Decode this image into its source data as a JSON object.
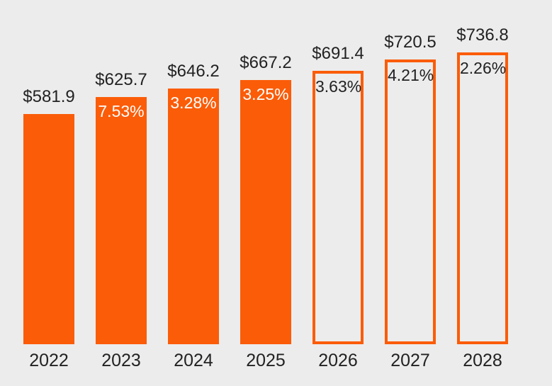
{
  "colors": {
    "background": "#ECECEC",
    "accent": "#FB5C08",
    "text_dark": "#222222",
    "pct_text_on_filled": "#FFFFFF"
  },
  "chart_data": {
    "type": "bar",
    "title": "",
    "xlabel": "",
    "ylabel": "",
    "legend": "none",
    "grid": false,
    "axes_visible": false,
    "categories": [
      "2022",
      "2023",
      "2024",
      "2025",
      "2026",
      "2027",
      "2028"
    ],
    "series": [
      {
        "name": "value",
        "values": [
          581.9,
          625.7,
          646.2,
          667.2,
          691.4,
          720.5,
          736.8
        ]
      }
    ],
    "growth_percent": [
      null,
      7.53,
      3.28,
      3.25,
      3.63,
      4.21,
      2.26
    ],
    "bars": [
      {
        "year": "2022",
        "value": 581.9,
        "value_label": "$581.9",
        "pct_label": "",
        "style": "filled"
      },
      {
        "year": "2023",
        "value": 625.7,
        "value_label": "$625.7",
        "pct_label": "7.53%",
        "style": "filled"
      },
      {
        "year": "2024",
        "value": 646.2,
        "value_label": "$646.2",
        "pct_label": "3.28%",
        "style": "filled"
      },
      {
        "year": "2025",
        "value": 667.2,
        "value_label": "$667.2",
        "pct_label": "3.25%",
        "style": "filled"
      },
      {
        "year": "2026",
        "value": 691.4,
        "value_label": "$691.4",
        "pct_label": "3.63%",
        "style": "outlined"
      },
      {
        "year": "2027",
        "value": 720.5,
        "value_label": "$720.5",
        "pct_label": "4.21%",
        "style": "outlined"
      },
      {
        "year": "2028",
        "value": 736.8,
        "value_label": "$736.8",
        "pct_label": "2.26%",
        "style": "outlined"
      }
    ]
  }
}
